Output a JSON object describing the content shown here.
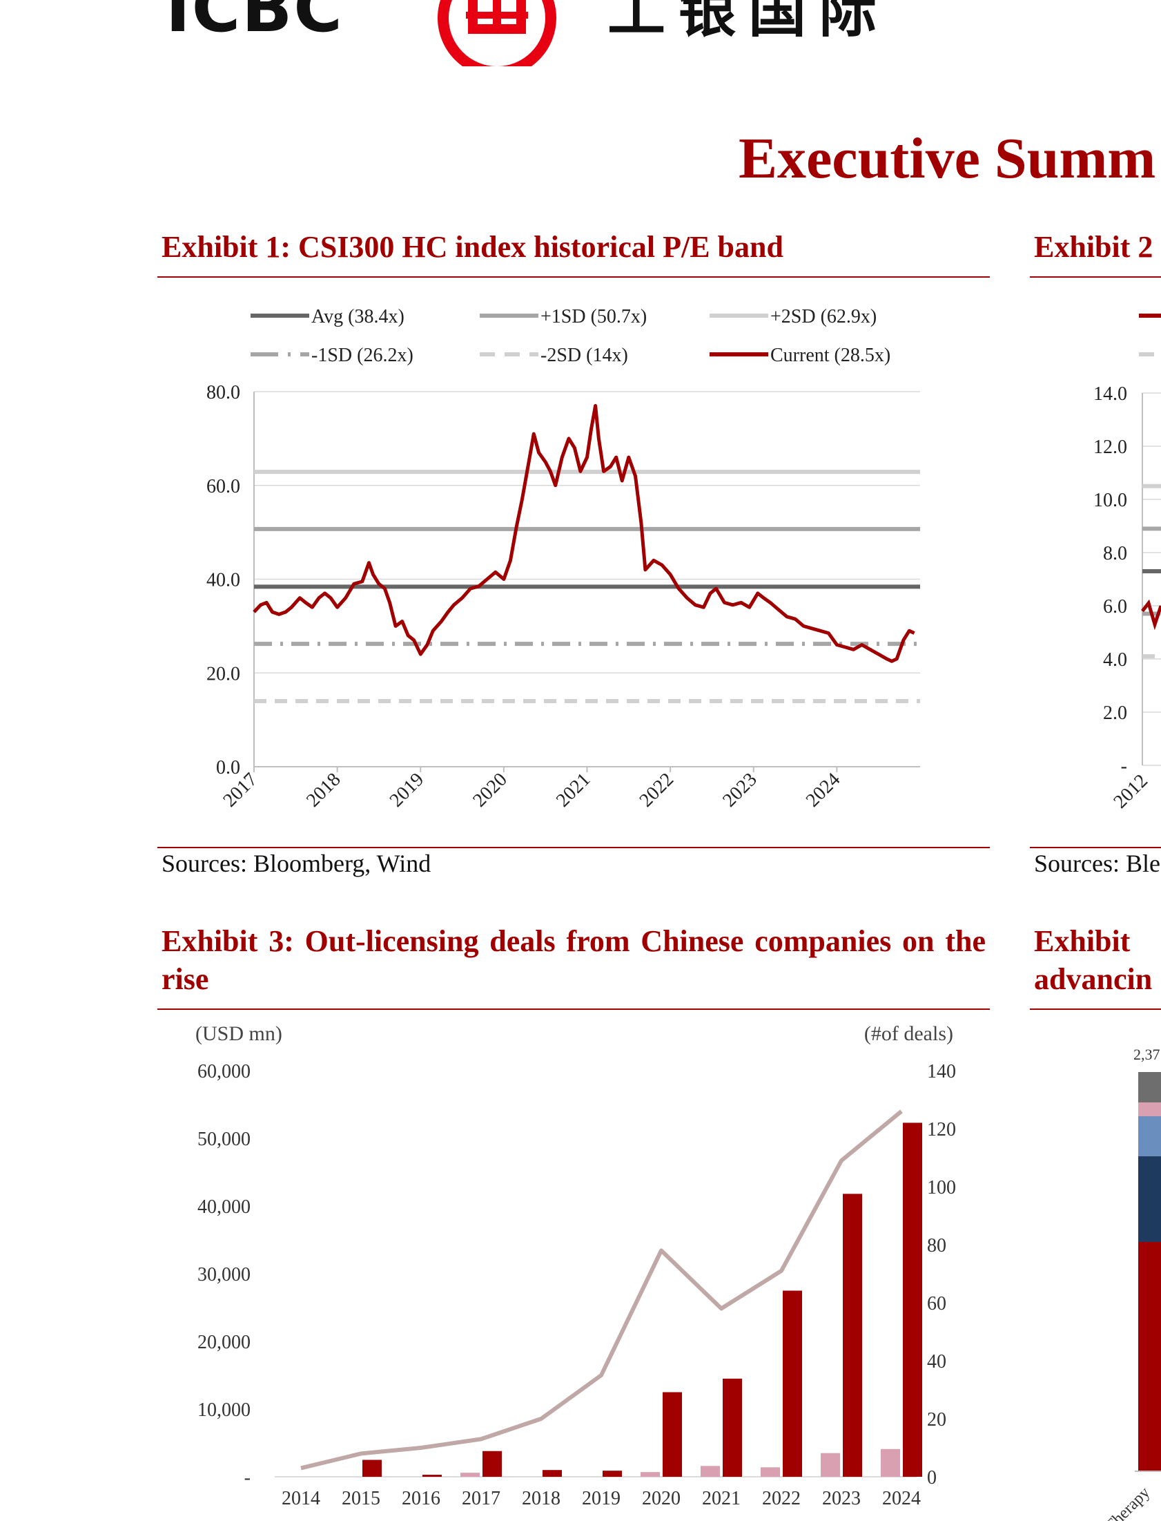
{
  "header": {
    "logo_text": "ICBC",
    "logo_cn": "工银国际",
    "page_title": "Executive Summ"
  },
  "exhibit1": {
    "title": "Exhibit 1: CSI300 HC index historical P/E band",
    "source": "Sources: Bloomberg, Wind",
    "chart_data": {
      "type": "line",
      "title": "Exhibit 1: CSI300 HC index historical P/E band",
      "xlabel": "",
      "ylabel": "",
      "ylim": [
        0,
        80
      ],
      "y_ticks": [
        "0.0",
        "20.0",
        "40.0",
        "60.0",
        "80.0"
      ],
      "x_ticks": [
        "2017",
        "2018",
        "2019",
        "2020",
        "2021",
        "2022",
        "2023",
        "2024"
      ],
      "legend": {
        "placement": "top",
        "entries": [
          "Avg (38.4x)",
          "+1SD (50.7x)",
          "+2SD (62.9x)",
          "-1SD (26.2x)",
          "-2SD (14x)",
          "Current (28.5x)"
        ]
      },
      "bands": [
        {
          "name": "Avg (38.4x)",
          "value": 38.4,
          "color": "#666666",
          "style": "solid"
        },
        {
          "name": "+1SD (50.7x)",
          "value": 50.7,
          "color": "#a6a6a6",
          "style": "solid"
        },
        {
          "name": "+2SD (62.9x)",
          "value": 62.9,
          "color": "#d0d0d0",
          "style": "solid"
        },
        {
          "name": "-1SD (26.2x)",
          "value": 26.2,
          "color": "#a6a6a6",
          "style": "dashdot"
        },
        {
          "name": "-2SD (14x)",
          "value": 14,
          "color": "#d0d0d0",
          "style": "dashed"
        }
      ],
      "series": [
        {
          "name": "Current (28.5x)",
          "color": "#a00000",
          "x": [
            2017.0,
            2017.08,
            2017.15,
            2017.22,
            2017.3,
            2017.38,
            2017.45,
            2017.55,
            2017.62,
            2017.7,
            2017.78,
            2017.85,
            2017.92,
            2018.0,
            2018.1,
            2018.2,
            2018.3,
            2018.38,
            2018.43,
            2018.5,
            2018.57,
            2018.63,
            2018.7,
            2018.78,
            2018.85,
            2018.92,
            2019.0,
            2019.08,
            2019.15,
            2019.25,
            2019.33,
            2019.4,
            2019.5,
            2019.6,
            2019.7,
            2019.8,
            2019.9,
            2020.0,
            2020.08,
            2020.15,
            2020.22,
            2020.3,
            2020.36,
            2020.42,
            2020.5,
            2020.56,
            2020.62,
            2020.7,
            2020.78,
            2020.85,
            2020.92,
            2021.0,
            2021.05,
            2021.1,
            2021.14,
            2021.2,
            2021.28,
            2021.35,
            2021.42,
            2021.5,
            2021.58,
            2021.65,
            2021.7,
            2021.8,
            2021.9,
            2022.0,
            2022.1,
            2022.2,
            2022.3,
            2022.4,
            2022.48,
            2022.55,
            2022.65,
            2022.75,
            2022.85,
            2022.95,
            2023.05,
            2023.12,
            2023.2,
            2023.3,
            2023.4,
            2023.5,
            2023.6,
            2023.7,
            2023.8,
            2023.9,
            2024.0,
            2024.1,
            2024.2,
            2024.3,
            2024.4,
            2024.5,
            2024.6,
            2024.66,
            2024.72,
            2024.8,
            2024.87,
            2024.93
          ],
          "y": [
            33,
            34.5,
            35,
            33,
            32.5,
            33,
            34,
            36,
            35,
            34,
            36,
            37,
            36,
            34,
            36,
            39,
            39.5,
            43.5,
            41,
            39,
            38,
            35,
            30,
            31,
            28,
            27,
            24,
            26,
            29,
            31,
            33,
            34.5,
            36,
            38,
            38.5,
            40,
            41.5,
            40,
            44,
            51,
            57,
            65,
            71,
            67,
            65,
            63,
            60,
            66,
            70,
            68,
            63,
            66,
            72,
            77,
            70,
            63,
            64,
            66,
            61,
            66,
            62,
            52,
            42,
            44,
            43,
            41,
            38,
            36,
            34.5,
            34,
            37,
            38,
            35,
            34.5,
            35,
            34,
            37,
            36,
            35,
            33.5,
            32,
            31.5,
            30,
            29.5,
            29,
            28.5,
            26,
            25.5,
            25,
            26,
            25,
            24,
            23,
            22.5,
            23,
            27,
            29,
            28.5
          ]
        }
      ]
    }
  },
  "exhibit2": {
    "title": "Exhibit 2",
    "source": "Sources: Ble",
    "chart_data": {
      "type": "line",
      "ylim": [
        0,
        14
      ],
      "y_ticks": [
        "-",
        "2.0",
        "4.0",
        "6.0",
        "8.0",
        "10.0",
        "12.0",
        "14.0"
      ],
      "x_ticks": [
        "2012"
      ],
      "bands": [
        {
          "value": 7.3,
          "color": "#666666",
          "style": "solid"
        },
        {
          "value": 8.9,
          "color": "#a6a6a6",
          "style": "solid"
        },
        {
          "value": 10.5,
          "color": "#d0d0d0",
          "style": "solid"
        },
        {
          "value": 5.7,
          "color": "#a6a6a6",
          "style": "dashdot"
        },
        {
          "value": 4.1,
          "color": "#d0d0d0",
          "style": "dashed"
        }
      ],
      "series": [
        {
          "color": "#a00000",
          "x": [
            0,
            0.3,
            0.6,
            0.9
          ],
          "y": [
            5.8,
            6.1,
            5.3,
            6.0
          ]
        }
      ]
    }
  },
  "exhibit3": {
    "title": "Exhibit 3: Out-licensing deals from Chinese companies on the rise",
    "chart_data": {
      "type": "bar",
      "title": "Exhibit 3: Out-licensing deals from Chinese companies on the rise",
      "left_axis_label": "(USD mn)",
      "right_axis_label": "(#of deals)",
      "ylim": [
        0,
        60000
      ],
      "y2lim": [
        0,
        140
      ],
      "y_ticks": [
        "-",
        "10,000",
        "20,000",
        "30,000",
        "40,000",
        "50,000",
        "60,000"
      ],
      "y2_ticks": [
        "0",
        "20",
        "40",
        "60",
        "80",
        "100",
        "120",
        "140"
      ],
      "categories": [
        "2014",
        "2015",
        "2016",
        "2017",
        "2018",
        "2019",
        "2020",
        "2021",
        "2022",
        "2023",
        "2024"
      ],
      "series": [
        {
          "type": "bar",
          "axis": "left",
          "color": "#a00000",
          "values": [
            0,
            2500,
            300,
            3800,
            1000,
            900,
            12500,
            14500,
            27500,
            41800,
            52300
          ]
        },
        {
          "type": "bar",
          "axis": "left",
          "color": "#d8a0b0",
          "values": [
            0,
            0,
            0,
            600,
            0,
            0,
            700,
            1600,
            1400,
            3500,
            4100
          ]
        },
        {
          "type": "line",
          "axis": "right",
          "color": "#bfa8a6",
          "values": [
            3,
            8,
            10,
            13,
            20,
            35,
            78,
            58,
            71,
            109,
            126
          ]
        }
      ]
    }
  },
  "exhibit4": {
    "title_line1": "Exhibit",
    "title_line2": "advancin",
    "top_value": "2,37",
    "x_label": "Cell Therapy",
    "chart_data": {
      "type": "bar",
      "categories": [
        "Cell Therapy"
      ],
      "stack_colors": [
        "#a00000",
        "#1f3a5f",
        "#6a8fbf",
        "#d8a0b0",
        "#6e6e6e"
      ]
    }
  }
}
